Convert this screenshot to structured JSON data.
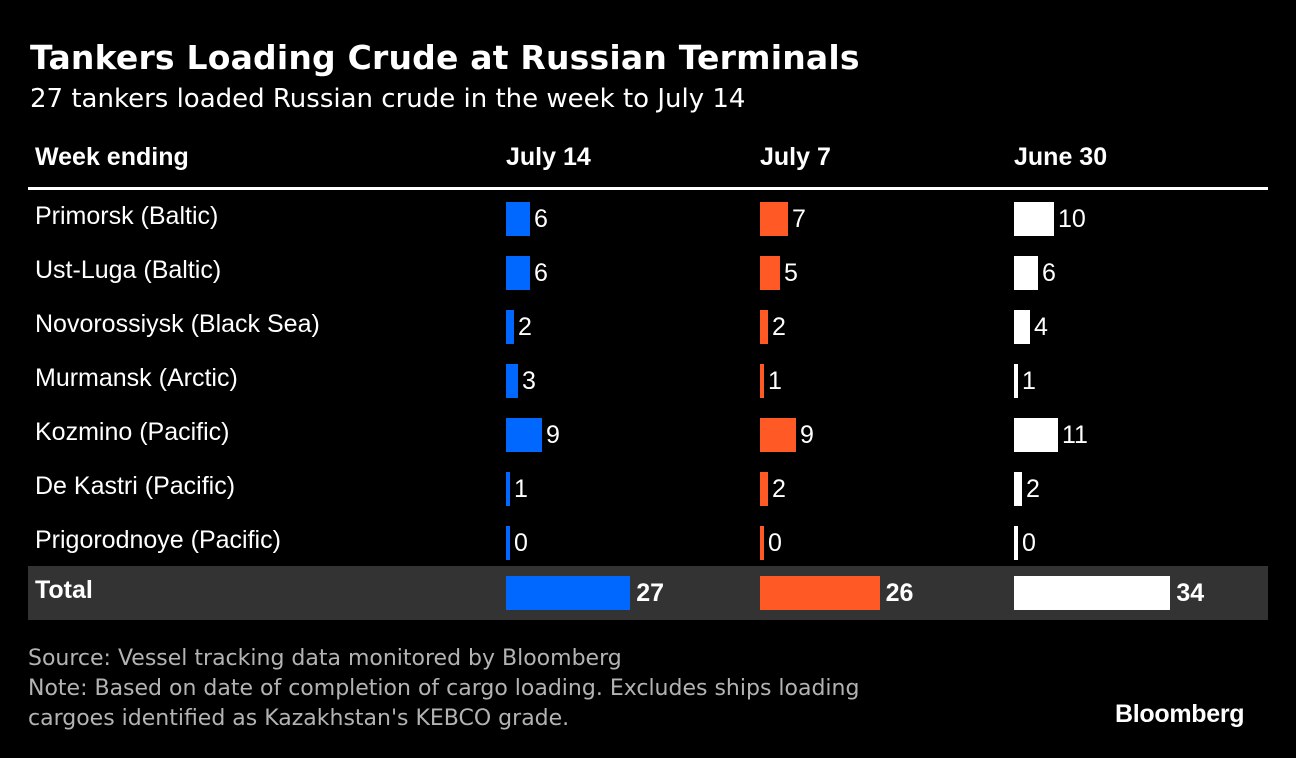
{
  "title": "Tankers Loading Crude at Russian Terminals",
  "subtitle": "27 tankers loaded Russian crude in the week to July 14",
  "footer": {
    "source": "Source: Vessel tracking data monitored by Bloomberg",
    "note_line1": "Note: Based on date of completion of cargo loading. Excludes ships loading",
    "note_line2": "cargoes identified as Kazakhstan's KEBCO grade.",
    "brand": "Bloomberg"
  },
  "chart_data": {
    "type": "bar",
    "row_header": "Week ending",
    "categories": [
      "Primorsk (Baltic)",
      "Ust-Luga (Baltic)",
      "Novorossiysk (Black Sea)",
      "Murmansk (Arctic)",
      "Kozmino (Pacific)",
      "De Kastri (Pacific)",
      "Prigorodnoye (Pacific)"
    ],
    "series": [
      {
        "name": "July 14",
        "color": "#0068ff",
        "values": [
          6,
          6,
          2,
          3,
          9,
          1,
          0
        ],
        "total": 27
      },
      {
        "name": "July 7",
        "color": "#ff5a26",
        "values": [
          7,
          5,
          2,
          1,
          9,
          2,
          0
        ],
        "total": 26
      },
      {
        "name": "June 30",
        "color": "#ffffff",
        "values": [
          10,
          6,
          4,
          1,
          11,
          2,
          0
        ],
        "total": 34
      }
    ],
    "total_label": "Total"
  }
}
